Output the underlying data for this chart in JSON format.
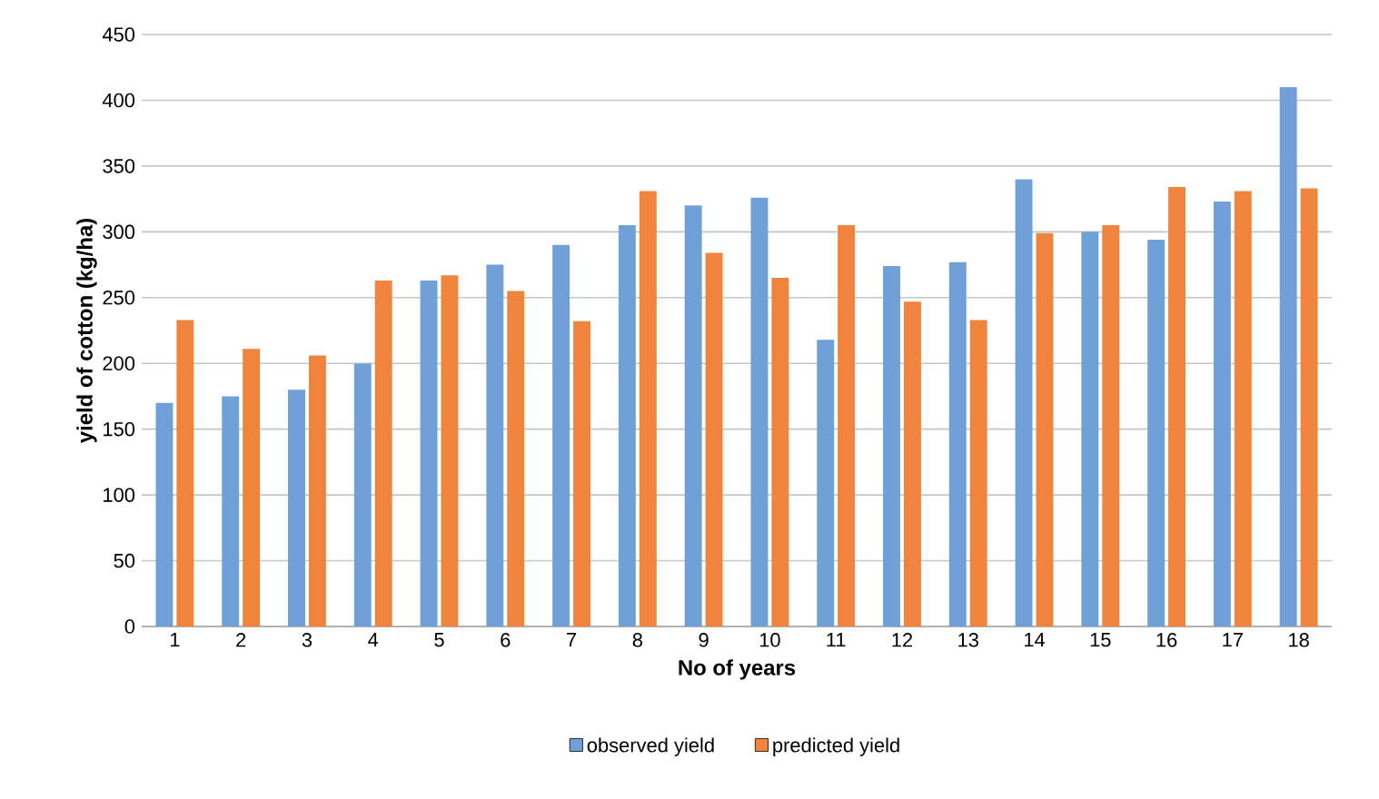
{
  "chart_data": {
    "type": "bar",
    "xlabel": "No of years",
    "ylabel": "yield of cotton (kg/ha)",
    "categories": [
      "1",
      "2",
      "3",
      "4",
      "5",
      "6",
      "7",
      "8",
      "9",
      "10",
      "11",
      "12",
      "13",
      "14",
      "15",
      "16",
      "17",
      "18"
    ],
    "series": [
      {
        "name": "observed yield",
        "color": "#6fa0d8",
        "values": [
          170,
          175,
          180,
          200,
          263,
          275,
          290,
          305,
          320,
          326,
          218,
          274,
          277,
          340,
          300,
          294,
          323,
          410
        ]
      },
      {
        "name": "predicted yield",
        "color": "#f0843c",
        "values": [
          233,
          211,
          206,
          263,
          267,
          255,
          232,
          331,
          284,
          265,
          305,
          247,
          233,
          299,
          305,
          334,
          331,
          333
        ]
      }
    ],
    "ylim": [
      0,
      450
    ],
    "yticks": [
      0,
      50,
      100,
      150,
      200,
      250,
      300,
      350,
      400,
      450
    ],
    "grid": "y",
    "legend": "bottom"
  }
}
